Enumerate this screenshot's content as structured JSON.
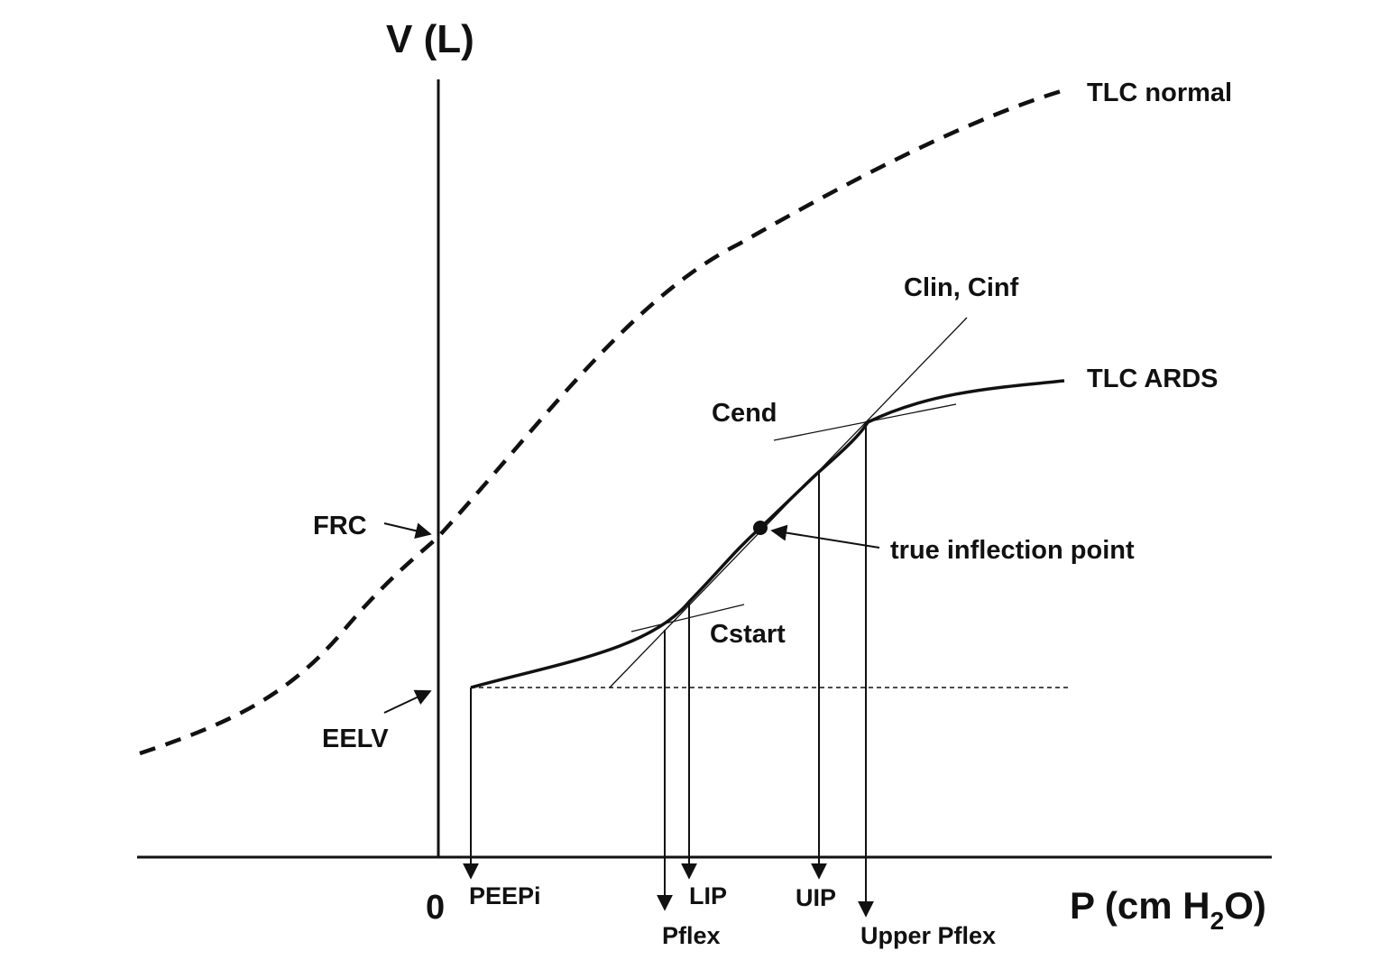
{
  "diagram": {
    "y_axis_label": "V (L)",
    "x_axis_label": "P (cm H",
    "x_axis_label_sub": "2",
    "x_axis_label_end": "O)",
    "origin_label": "0",
    "curves": {
      "normal": "TLC normal",
      "ards": "TLC ARDS"
    },
    "volume_labels": {
      "frc": "FRC",
      "eelv": "EELV"
    },
    "tangent_labels": {
      "clin_cinf": "Clin, Cinf",
      "cend": "Cend",
      "cstart": "Cstart"
    },
    "point_label": "true inflection point",
    "pressure_labels": {
      "peepi": "PEEPi",
      "lip": "LIP",
      "pflex": "Pflex",
      "uip": "UIP",
      "upper_pflex": "Upper Pflex"
    },
    "colors": {
      "ink": "#111111",
      "background": "#ffffff"
    }
  }
}
